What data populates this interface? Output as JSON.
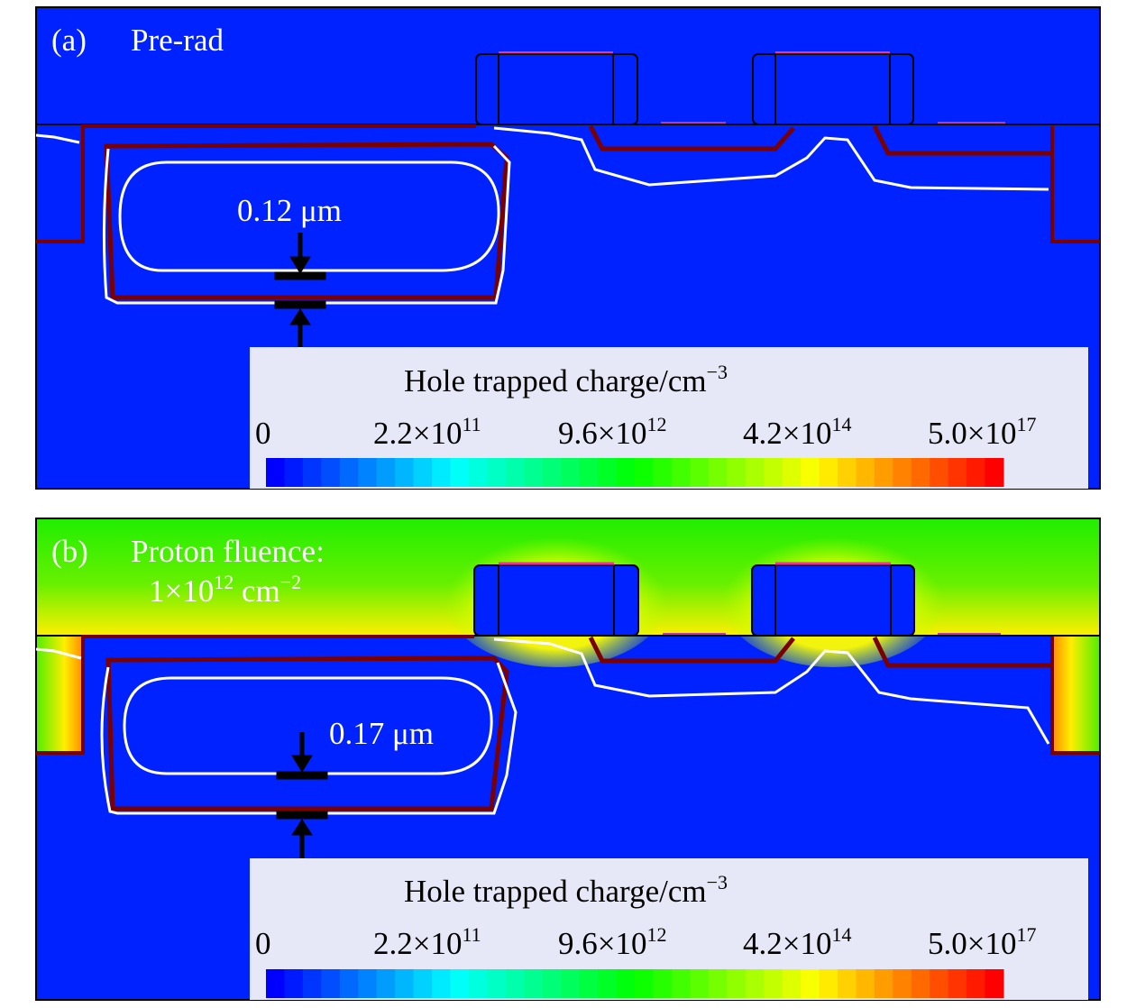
{
  "colors": {
    "background_blue": "#0022ff",
    "irradiated_green": "#22ee00",
    "boundary_dark_red": "#7a0000",
    "contour_white": "#ffffff",
    "legend_bg": "#e6e8f8",
    "gate_top_magenta": "#ff2aa0"
  },
  "panels": [
    {
      "label": "(a)",
      "title": "Pre-rad",
      "dimension": "0.12 μm",
      "legend": {
        "title": "Hole trapped charge/cm",
        "title_exp": "−3",
        "ticks": [
          {
            "mantissa": "0",
            "exponent": ""
          },
          {
            "mantissa": "2.2×10",
            "exponent": "11"
          },
          {
            "mantissa": "9.6×10",
            "exponent": "12"
          },
          {
            "mantissa": "4.2×10",
            "exponent": "14"
          },
          {
            "mantissa": "5.0×10",
            "exponent": "17"
          }
        ]
      }
    },
    {
      "label": "(b)",
      "title": "Proton fluence:",
      "fluence_mantissa": "1×10",
      "fluence_exp": "12",
      "fluence_unit": " cm",
      "fluence_unit_exp": "−2",
      "dimension": "0.17 μm",
      "legend": {
        "title": "Hole trapped charge/cm",
        "title_exp": "−3",
        "ticks": [
          {
            "mantissa": "0",
            "exponent": ""
          },
          {
            "mantissa": "2.2×10",
            "exponent": "11"
          },
          {
            "mantissa": "9.6×10",
            "exponent": "12"
          },
          {
            "mantissa": "4.2×10",
            "exponent": "14"
          },
          {
            "mantissa": "5.0×10",
            "exponent": "17"
          }
        ]
      }
    }
  ],
  "colormap": "rainbow blue-to-red"
}
